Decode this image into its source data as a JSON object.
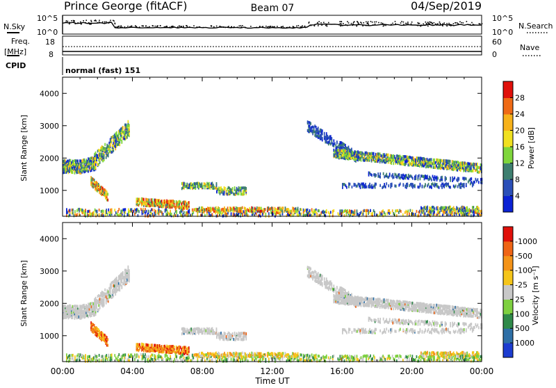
{
  "header": {
    "station": "Prince George (fitACF)",
    "beam": "Beam 07",
    "date": "04/Sep/2019"
  },
  "sky_panel": {
    "left_label": "N.Sky",
    "right_label": "N.Search",
    "left_ticks": [
      "10^5",
      "10^0"
    ],
    "right_ticks": [
      "10^5",
      "10^0"
    ]
  },
  "freq_panel": {
    "left_label_1": "Freq.",
    "left_label_2": "[MHz]",
    "left_ticks": [
      "18",
      "8"
    ],
    "right_label": "Nave",
    "right_ticks": [
      "60",
      "0"
    ]
  },
  "cpid": {
    "label": "CPID",
    "value": "normal (fast) 151"
  },
  "chart_data": [
    {
      "type": "heatmap",
      "ylabel": "Slant Range [km]",
      "xlabel": "",
      "ylim": [
        200,
        4500
      ],
      "xlim": [
        0,
        24
      ],
      "y_ticks": [
        "1000",
        "2000",
        "3000",
        "4000"
      ],
      "colorbar": {
        "label": "Power [dB]",
        "ticks": [
          "4",
          "8",
          "12",
          "16",
          "20",
          "24",
          "28"
        ],
        "colors": [
          "#0b22d4",
          "#2b4fb8",
          "#3e7f70",
          "#7fd63c",
          "#f0e020",
          "#f7b21a",
          "#ef6a15",
          "#e0100a"
        ],
        "range": [
          0,
          32
        ]
      }
    },
    {
      "type": "heatmap",
      "ylabel": "Slant Range [km]",
      "xlabel": "Time UT",
      "ylim": [
        200,
        4500
      ],
      "xlim": [
        0,
        24
      ],
      "y_ticks": [
        "1000",
        "2000",
        "3000",
        "4000"
      ],
      "x_ticks": [
        "00:00",
        "04:00",
        "08:00",
        "12:00",
        "16:00",
        "20:00",
        "00:00"
      ],
      "colorbar": {
        "label": "Velocity [m s⁻¹]",
        "ticks": [
          "1000",
          "500",
          "100",
          "25",
          "-25",
          "-100",
          "-500",
          "-1000"
        ],
        "colors": [
          "#1c3cd0",
          "#2e6fa6",
          "#2f8a4a",
          "#7ed040",
          "#c8c8c8",
          "#f5c51a",
          "#f49318",
          "#ef6415",
          "#e0100a"
        ]
      }
    }
  ]
}
